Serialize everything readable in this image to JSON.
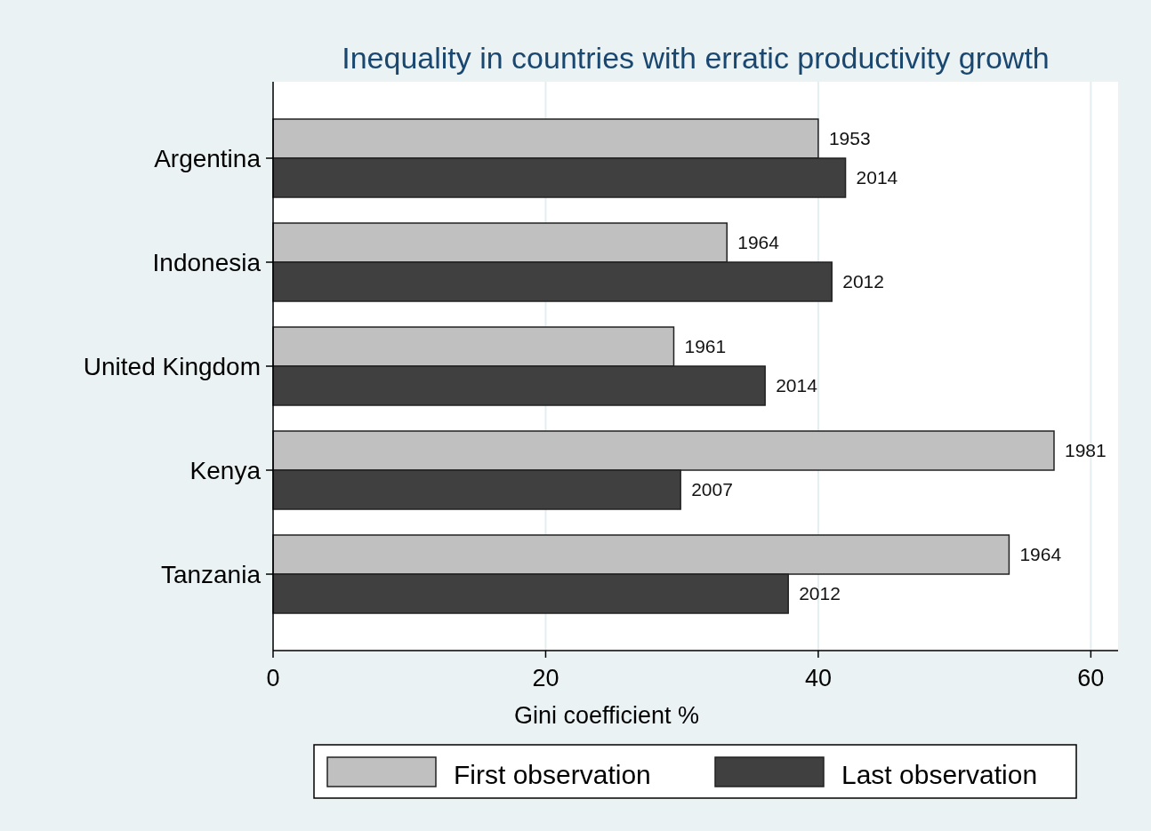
{
  "chart_data": {
    "type": "bar",
    "orientation": "horizontal",
    "title": "Inequality in countries with erratic productivity growth",
    "xlabel": "Gini coefficient %",
    "categories": [
      "Argentina",
      "Indonesia",
      "United Kingdom",
      "Kenya",
      "Tanzania"
    ],
    "series": [
      {
        "name": "First observation",
        "color": "#c0c0c0",
        "values": [
          40.0,
          33.3,
          29.4,
          57.3,
          54.0
        ]
      },
      {
        "name": "Last observation",
        "color": "#404040",
        "values": [
          42.0,
          41.0,
          36.1,
          29.9,
          37.8
        ]
      }
    ],
    "annotations": [
      {
        "text": "1953",
        "x": 40.0,
        "y": "Argentina"
      },
      {
        "text": "2014",
        "x": 42.0,
        "y": "Argentina"
      },
      {
        "text": "1964",
        "x": 33.3,
        "y": "Indonesia"
      },
      {
        "text": "2012",
        "x": 41.0,
        "y": "Indonesia"
      },
      {
        "text": "1961",
        "x": 29.4,
        "y": "United Kingdom"
      },
      {
        "text": "2014",
        "x": 36.1,
        "y": "United Kingdom"
      },
      {
        "text": "1981",
        "x": 57.3,
        "y": "Kenya"
      },
      {
        "text": "2007",
        "x": 29.9,
        "y": "Kenya"
      },
      {
        "text": "1964",
        "x": 54.0,
        "y": "Tanzania"
      },
      {
        "text": "2012",
        "x": 37.8,
        "y": "Tanzania"
      }
    ],
    "xlim": [
      0,
      62
    ],
    "xticks": [
      0,
      20,
      40,
      60
    ],
    "grid": "x",
    "legend": "bottom"
  }
}
